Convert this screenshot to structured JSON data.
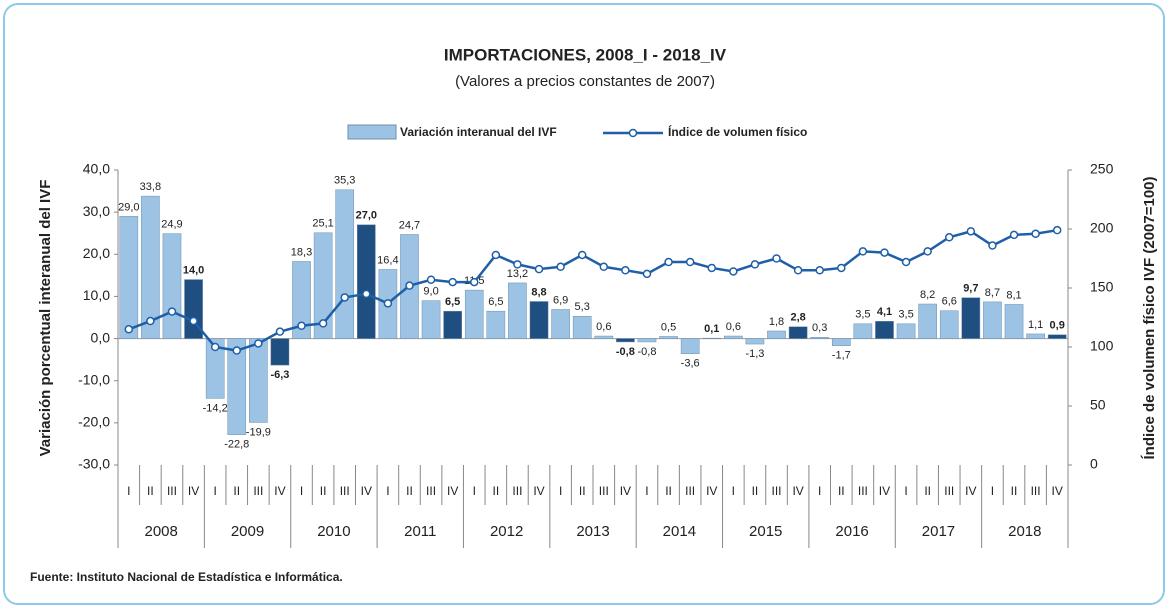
{
  "chart_data": {
    "type": "bar_line",
    "title": "IMPORTACIONES, 2008_I - 2018_IV",
    "subtitle": "(Valores a precios constantes de 2007)",
    "y_label": "Variación porcentual interanual del IVF",
    "y2_label": "Índice de volumen físico IVF (2007=100)",
    "source": "Fuente: Instituto Nacional de Estadística e Informática.",
    "categories": [
      "I",
      "II",
      "III",
      "IV",
      "I",
      "II",
      "III",
      "IV",
      "I",
      "II",
      "III",
      "IV",
      "I",
      "II",
      "III",
      "IV",
      "I",
      "II",
      "III",
      "IV",
      "I",
      "II",
      "III",
      "IV",
      "I",
      "II",
      "III",
      "IV",
      "I",
      "II",
      "III",
      "IV",
      "I",
      "II",
      "III",
      "IV",
      "I",
      "II",
      "III",
      "IV",
      "I",
      "II",
      "III",
      "IV"
    ],
    "years": [
      "2008",
      "2009",
      "2010",
      "2011",
      "2012",
      "2013",
      "2014",
      "2015",
      "2016",
      "2017",
      "2018"
    ],
    "series": [
      {
        "name": "Variación interanual del IVF",
        "type": "bar",
        "color": "#9cc3e4",
        "highlight_color": "#1f4e80",
        "values": [
          29.0,
          33.8,
          24.9,
          14.0,
          -14.2,
          -22.8,
          -19.9,
          -6.3,
          18.3,
          25.1,
          35.3,
          27.0,
          16.4,
          24.7,
          9.0,
          6.5,
          11.5,
          6.5,
          13.2,
          8.8,
          6.9,
          5.3,
          0.6,
          -0.8,
          -0.8,
          0.5,
          -3.6,
          0.1,
          0.6,
          -1.3,
          1.8,
          2.8,
          0.3,
          -1.7,
          3.5,
          4.1,
          3.5,
          8.2,
          6.6,
          9.7,
          8.7,
          8.1,
          1.1,
          0.9
        ],
        "value_labels": [
          "29,0",
          "33,8",
          "24,9",
          "14,0",
          "-14,2",
          "-22,8",
          "-19,9",
          "-6,3",
          "18,3",
          "25,1",
          "35,3",
          "27,0",
          "16,4",
          "24,7",
          "9,0",
          "6,5",
          "11,5",
          "6,5",
          "13,2",
          "8,8",
          "6,9",
          "5,3",
          "0,6",
          "-0,8",
          "-0,8",
          "0,5",
          "-3,6",
          "0,1",
          "0,6",
          "-1,3",
          "1,8",
          "2,8",
          "0,3",
          "-1,7",
          "3,5",
          "4,1",
          "3,5",
          "8,2",
          "6,6",
          "9,7",
          "8,7",
          "8,1",
          "1,1",
          "0,9"
        ]
      },
      {
        "name": "Índice de volumen físico",
        "type": "line",
        "axis": "y2",
        "color": "#1f5fa8",
        "values": [
          115,
          122,
          130,
          122,
          100,
          97,
          103,
          113,
          118,
          120,
          142,
          145,
          137,
          152,
          157,
          155,
          155,
          178,
          170,
          166,
          168,
          178,
          168,
          165,
          162,
          172,
          172,
          167,
          164,
          170,
          175,
          165,
          165,
          167,
          181,
          180,
          172,
          181,
          193,
          198,
          186,
          195,
          196,
          199
        ]
      }
    ],
    "ylim": [
      -30,
      40
    ],
    "yticks": [
      {
        "value": -30,
        "label": "-30,0"
      },
      {
        "value": -20,
        "label": "-20,0"
      },
      {
        "value": -10,
        "label": "-10,0"
      },
      {
        "value": 0,
        "label": "0,0"
      },
      {
        "value": 10,
        "label": "10,0"
      },
      {
        "value": 20,
        "label": "20,0"
      },
      {
        "value": 30,
        "label": "30,0"
      },
      {
        "value": 40,
        "label": "40,0"
      }
    ],
    "y2lim": [
      0,
      250
    ],
    "y2ticks": [
      0,
      50,
      100,
      150,
      200,
      250
    ]
  }
}
